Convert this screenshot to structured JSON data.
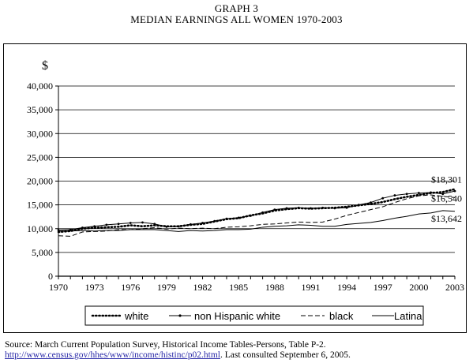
{
  "title_line1": "GRAPH 3",
  "title_line2": "MEDIAN EARNINGS ALL WOMEN 1970-2003",
  "source": {
    "prefix": "Source: March Current Population Survey, Historical Income Tables-Persons, Table P-2.",
    "link_part1": "http://www.census.gov/hhes/",
    "link_part2": "www/income/histinc/p02.html",
    "suffix": ". Last consulted September 6, 2005."
  },
  "chart_data": {
    "type": "line",
    "ylabel": "$",
    "xlabel": "",
    "ylim": [
      0,
      40000
    ],
    "yticks": [
      "0",
      "5,000",
      "10,000",
      "15,000",
      "20,000",
      "25,000",
      "30,000",
      "35,000",
      "40,000"
    ],
    "ytick_values": [
      0,
      5000,
      10000,
      15000,
      20000,
      25000,
      30000,
      35000,
      40000
    ],
    "xlim": [
      1970,
      2003
    ],
    "xticks": [
      "1970",
      "1973",
      "1976",
      "1979",
      "1982",
      "1985",
      "1988",
      "1991",
      "1994",
      "1997",
      "2000",
      "2003"
    ],
    "xtick_values": [
      1970,
      1973,
      1976,
      1979,
      1982,
      1985,
      1988,
      1991,
      1994,
      1997,
      2000,
      2003
    ],
    "grid": "horizontal",
    "legend_position": "bottom",
    "x": [
      1970,
      1971,
      1972,
      1973,
      1974,
      1975,
      1976,
      1977,
      1978,
      1979,
      1980,
      1981,
      1982,
      1983,
      1984,
      1985,
      1986,
      1987,
      1988,
      1989,
      1990,
      1991,
      1992,
      1993,
      1994,
      1995,
      1996,
      1997,
      1998,
      1999,
      2000,
      2001,
      2002,
      2003
    ],
    "series": [
      {
        "name": "white",
        "style": "dotted",
        "values": [
          9300,
          9500,
          10000,
          10200,
          10300,
          10400,
          10700,
          10500,
          10700,
          10500,
          10500,
          10800,
          11000,
          11500,
          12000,
          12200,
          12800,
          13200,
          13800,
          14100,
          14300,
          14200,
          14300,
          14400,
          14600,
          14900,
          15200,
          15600,
          16200,
          16700,
          17100,
          17500,
          17700,
          18301
        ]
      },
      {
        "name": "non Hispanic white",
        "style": "solid-dots",
        "values": [
          9700,
          9800,
          10200,
          10500,
          10800,
          11000,
          11200,
          11300,
          11000,
          10400,
          10500,
          10900,
          11200,
          11600,
          12100,
          12300,
          12700,
          13400,
          14000,
          14300,
          14400,
          14300,
          14400,
          14300,
          14400,
          15000,
          15500,
          16400,
          17000,
          17300,
          17500,
          17600,
          17300,
          17900
        ]
      },
      {
        "name": "black",
        "style": "dashed",
        "values": [
          8500,
          8400,
          9300,
          9400,
          9500,
          9800,
          9800,
          10000,
          10200,
          9900,
          10100,
          10000,
          10100,
          10000,
          10300,
          10400,
          10600,
          10900,
          11000,
          11200,
          11400,
          11300,
          11400,
          12000,
          12800,
          13400,
          14000,
          14600,
          15500,
          16300,
          16900,
          17100,
          16800,
          16540
        ]
      },
      {
        "name": "Latina",
        "style": "solid",
        "values": [
          9500,
          9500,
          9600,
          9500,
          9600,
          9600,
          9800,
          9800,
          9800,
          9600,
          9400,
          9600,
          9500,
          9600,
          9800,
          9800,
          9900,
          10300,
          10500,
          10600,
          10800,
          10700,
          10500,
          10500,
          10900,
          11100,
          11300,
          11700,
          12200,
          12600,
          13100,
          13300,
          13800,
          13642
        ]
      }
    ],
    "annotations": [
      {
        "text": "$18,301",
        "x": 2003,
        "y": 18301
      },
      {
        "text": "$16,540",
        "x": 2003,
        "y": 16540
      },
      {
        "text": "$13,642",
        "x": 2003,
        "y": 13642
      }
    ]
  }
}
